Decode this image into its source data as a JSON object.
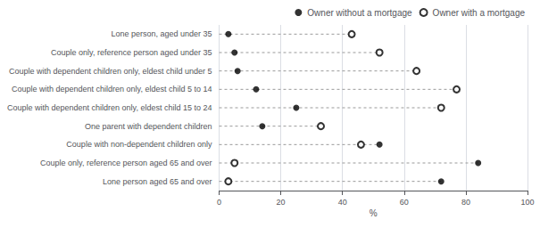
{
  "chart_data": {
    "type": "dot",
    "orientation": "horizontal",
    "categories": [
      "Lone person, aged under 35",
      "Couple only, reference person aged under 35",
      "Couple with dependent children only, eldest child under 5",
      "Couple with dependent children only, eldest child 5 to 14",
      "Couple with dependent children only, eldest child 15 to 24",
      "One parent with dependent children",
      "Couple with non-dependent children only",
      "Couple only, reference person aged 65 and over",
      "Lone person aged 65 and over"
    ],
    "series": [
      {
        "name": "Owner without a mortgage",
        "color": "#000000",
        "marker": "circle",
        "values": [
          3,
          5,
          6,
          12,
          25,
          14,
          52,
          84,
          72
        ]
      },
      {
        "name": "Owner with a mortgage",
        "color": "#000000",
        "marker": "open-circle",
        "values": [
          43,
          52,
          64,
          77,
          72,
          33,
          46,
          5,
          3
        ]
      }
    ],
    "xlabel": "%",
    "xlim": [
      0,
      100
    ],
    "xticks": [
      0,
      20,
      40,
      60,
      80,
      100
    ],
    "grid": true,
    "legend": "upper right",
    "line_style": "dashed"
  }
}
